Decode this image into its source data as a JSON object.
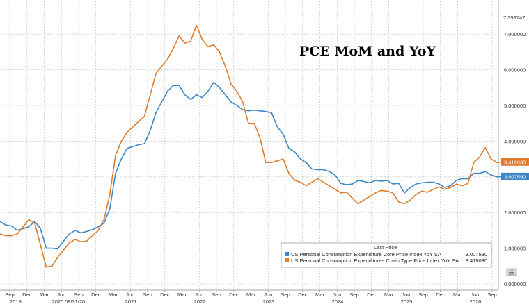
{
  "chart_data": {
    "type": "line",
    "title": "PCE MoM and YoY",
    "top_label": "7.359747",
    "date_marker": "08/31/20",
    "y_ticks": [
      "0.000000",
      "1.000000",
      "2.000000",
      "3.000000",
      "4.000000",
      "5.000000",
      "6.000000",
      "7.000000"
    ],
    "ylim": [
      -0.2,
      7.9
    ],
    "x_month_labels": [
      "Sep",
      "Dec",
      "Mar",
      "Jun",
      "Sep",
      "Dec",
      "Mar",
      "Jun",
      "Sep",
      "Dec",
      "Mar",
      "Jun",
      "Sep",
      "Dec",
      "Mar",
      "Jun",
      "Sep",
      "Dec",
      "Mar",
      "Jun",
      "Sep",
      "Dec",
      "Mar",
      "Jun",
      "Sep",
      "Dec",
      "Mar",
      "Jun",
      "Sep"
    ],
    "x_year_labels": [
      "2019",
      "2020",
      "2021",
      "2022",
      "2023",
      "2024",
      "2025",
      "2026"
    ],
    "grid": true,
    "legend": {
      "header": "Last Price",
      "placement": "bottom-right",
      "entries": [
        {
          "label": "US Personal Consumption Expenditure Core Price Index YoY SA",
          "value": "3.007590"
        },
        {
          "label": "US Personal Consumption Expenditures Chain Type Price Index YoY SA",
          "value": "3.419030"
        }
      ]
    },
    "series": [
      {
        "label": "US Personal Consumption Expenditure Core Price Index YoY SA",
        "color": "#3d86c6",
        "last": "3.007590",
        "values": [
          1.75,
          1.65,
          1.62,
          1.5,
          1.55,
          1.6,
          1.75,
          1.55,
          1.0,
          1.0,
          0.98,
          1.2,
          1.4,
          1.5,
          1.43,
          1.47,
          1.52,
          1.6,
          1.7,
          2.1,
          3.1,
          3.5,
          3.8,
          3.85,
          3.9,
          3.93,
          4.3,
          4.8,
          5.1,
          5.4,
          5.56,
          5.56,
          5.3,
          5.17,
          5.3,
          5.22,
          5.4,
          5.65,
          5.5,
          5.3,
          5.1,
          5.0,
          4.88,
          4.85,
          4.87,
          4.85,
          4.83,
          4.8,
          4.4,
          4.2,
          3.8,
          3.7,
          3.5,
          3.4,
          3.22,
          3.2,
          3.2,
          3.15,
          3.05,
          2.82,
          2.78,
          2.8,
          2.9,
          2.87,
          2.83,
          2.9,
          2.88,
          2.9,
          2.8,
          2.82,
          2.55,
          2.7,
          2.8,
          2.83,
          2.85,
          2.85,
          2.8,
          2.7,
          2.75,
          2.9,
          2.95,
          2.95,
          3.1,
          3.1,
          3.15,
          3.05,
          3.0,
          3.008
        ]
      },
      {
        "label": "US Personal Consumption Expenditures Chain Type Price Index YoY SA",
        "color": "#e07b2a",
        "last": "3.419030",
        "values": [
          1.4,
          1.35,
          1.35,
          1.4,
          1.6,
          1.8,
          1.7,
          1.1,
          0.47,
          0.5,
          0.75,
          0.95,
          1.15,
          1.25,
          1.18,
          1.2,
          1.35,
          1.5,
          1.8,
          2.5,
          3.6,
          4.0,
          4.25,
          4.4,
          4.55,
          4.7,
          5.3,
          5.9,
          6.1,
          6.3,
          6.6,
          6.95,
          6.75,
          6.8,
          7.25,
          6.85,
          6.65,
          6.7,
          6.5,
          6.1,
          5.6,
          5.4,
          5.1,
          4.5,
          4.5,
          4.1,
          3.4,
          3.4,
          3.45,
          3.5,
          3.1,
          2.9,
          2.85,
          2.75,
          2.85,
          2.95,
          2.85,
          2.75,
          2.65,
          2.55,
          2.57,
          2.4,
          2.25,
          2.35,
          2.45,
          2.55,
          2.62,
          2.6,
          2.55,
          2.3,
          2.25,
          2.35,
          2.5,
          2.6,
          2.57,
          2.65,
          2.72,
          2.65,
          2.7,
          2.8,
          2.75,
          2.82,
          3.4,
          3.55,
          3.82,
          3.5,
          3.4,
          3.419
        ]
      }
    ]
  }
}
